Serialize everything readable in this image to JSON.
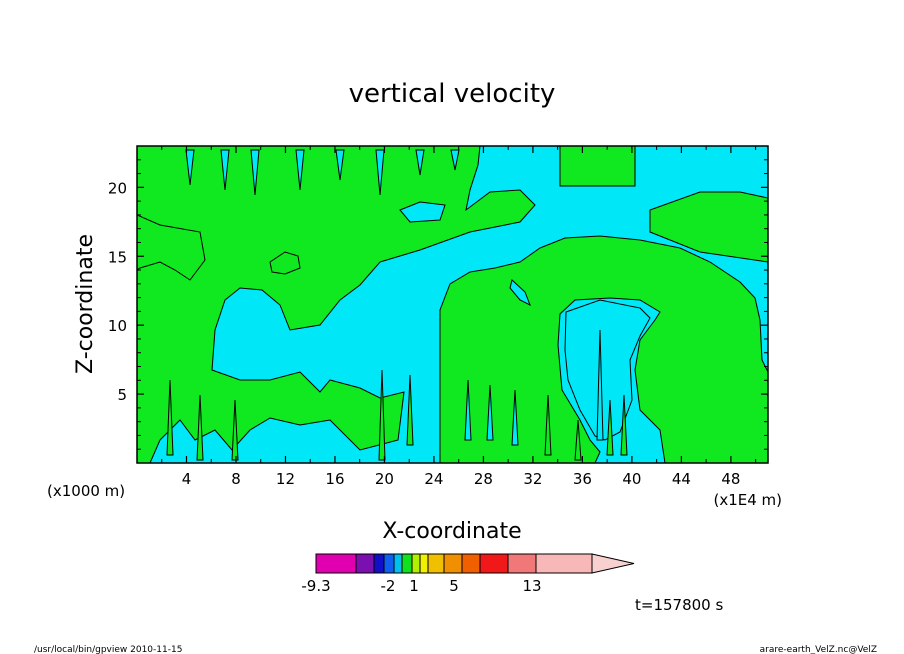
{
  "chart_data": {
    "type": "heatmap",
    "title": "vertical velocity",
    "xlabel": "X-coordinate",
    "ylabel": "Z-coordinate",
    "x_unit_left": "(x1000 m)",
    "x_unit_right": "(x1E4 m)",
    "x_ticks": [
      "4",
      "8",
      "12",
      "16",
      "20",
      "24",
      "28",
      "32",
      "36",
      "40",
      "44",
      "48"
    ],
    "y_ticks": [
      "5",
      "10",
      "15",
      "20"
    ],
    "xlim": [
      0,
      51
    ],
    "ylim": [
      0,
      23
    ],
    "colorbar": {
      "colors": [
        "#e000b0",
        "#7a10b0",
        "#1010c8",
        "#1060f0",
        "#00c0f0",
        "#10e020",
        "#b0f000",
        "#f0f000",
        "#f0c000",
        "#f09000",
        "#f06000",
        "#f01818",
        "#f07878",
        "#f8b8b8",
        "#f8d0d0"
      ],
      "labels": [
        "-9.3",
        "-2",
        "1",
        "5",
        "13"
      ]
    },
    "fill_colors": {
      "negative": "#00e8f8",
      "positive": "#10e820"
    }
  },
  "time_label": "t=157800 s",
  "footer_left": "/usr/local/bin/gpview  2010-11-15",
  "footer_right": "arare-earth_VelZ.nc@VelZ"
}
